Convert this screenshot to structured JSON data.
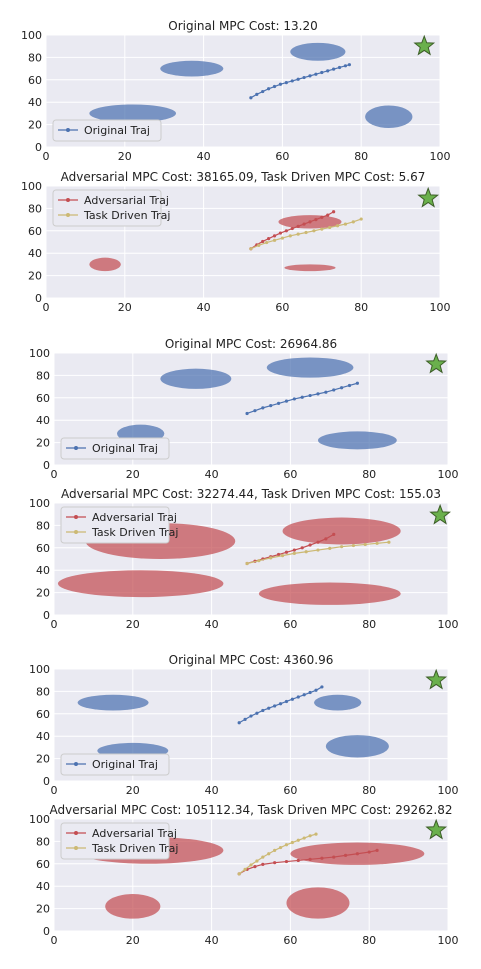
{
  "chart_data": [
    {
      "type": "scatter",
      "title": "Original MPC Cost: 13.20",
      "xlim": [
        0,
        100
      ],
      "ylim": [
        0,
        100
      ],
      "xticks": [
        0,
        20,
        40,
        60,
        80,
        100
      ],
      "yticks": [
        0,
        20,
        40,
        60,
        80,
        100
      ],
      "grid": true,
      "legend_position": "lower-left",
      "obstacle_color": "#4c72b0",
      "obstacles": [
        {
          "cx": 37,
          "cy": 70,
          "rx": 8,
          "ry": 7
        },
        {
          "cx": 69,
          "cy": 85,
          "rx": 7,
          "ry": 8
        },
        {
          "cx": 22,
          "cy": 30,
          "rx": 11,
          "ry": 8
        },
        {
          "cx": 87,
          "cy": 27,
          "rx": 6,
          "ry": 10
        }
      ],
      "goal": {
        "x": 96,
        "y": 90,
        "color": "#6ab04c"
      },
      "series": [
        {
          "name": "Original Traj",
          "color": "#4c72b0",
          "x": [
            52,
            53.5,
            55,
            56.5,
            58,
            59.5,
            61,
            62.5,
            64,
            65.5,
            67,
            68.5,
            70,
            71.5,
            73,
            74.5,
            76,
            77
          ],
          "y": [
            44,
            47,
            49.5,
            52,
            54,
            56,
            57.5,
            59,
            60.5,
            62,
            63.5,
            65,
            66.5,
            68,
            69.5,
            71,
            72.5,
            73.5
          ]
        }
      ]
    },
    {
      "type": "scatter",
      "title": "Adversarial MPC Cost: 38165.09, Task Driven MPC Cost: 5.67",
      "xlim": [
        0,
        100
      ],
      "ylim": [
        0,
        100
      ],
      "xticks": [
        0,
        20,
        40,
        60,
        80,
        100
      ],
      "yticks": [
        0,
        20,
        40,
        60,
        80,
        100
      ],
      "grid": true,
      "legend_position": "upper-left",
      "obstacle_color": "#c44e52",
      "obstacles": [
        {
          "cx": 67,
          "cy": 68,
          "rx": 8,
          "ry": 6
        },
        {
          "cx": 15,
          "cy": 30,
          "rx": 4,
          "ry": 6
        },
        {
          "cx": 67,
          "cy": 27,
          "rx": 6.5,
          "ry": 3
        }
      ],
      "goal": {
        "x": 97,
        "y": 89,
        "color": "#6ab04c"
      },
      "series": [
        {
          "name": "Adversarial Traj",
          "color": "#c44e52",
          "x": [
            52,
            53.5,
            55,
            56.5,
            58,
            59.5,
            61,
            62.5,
            64,
            65.5,
            67,
            68.5,
            70,
            71.5,
            73
          ],
          "y": [
            44,
            47.5,
            50.5,
            53,
            55.5,
            58,
            60,
            62,
            64,
            66,
            68,
            70,
            72,
            74,
            77
          ]
        },
        {
          "name": "Task Driven Traj",
          "color": "#ccb974",
          "x": [
            52,
            54,
            56,
            58,
            60,
            62,
            64,
            66,
            68,
            70,
            72,
            74,
            76,
            78,
            80
          ],
          "y": [
            44,
            47,
            49.5,
            51.5,
            53.5,
            55.5,
            57,
            58.5,
            60,
            61.5,
            63,
            64.5,
            66,
            68,
            70.5
          ]
        }
      ]
    },
    {
      "type": "scatter",
      "title": "Original MPC Cost: 26964.86",
      "xlim": [
        0,
        100
      ],
      "ylim": [
        0,
        100
      ],
      "xticks": [
        0,
        20,
        40,
        60,
        80,
        100
      ],
      "yticks": [
        0,
        20,
        40,
        60,
        80,
        100
      ],
      "grid": true,
      "legend_position": "lower-left",
      "obstacle_color": "#4c72b0",
      "obstacles": [
        {
          "cx": 36,
          "cy": 77,
          "rx": 9,
          "ry": 9
        },
        {
          "cx": 65,
          "cy": 87,
          "rx": 11,
          "ry": 9
        },
        {
          "cx": 22,
          "cy": 28,
          "rx": 6,
          "ry": 8
        },
        {
          "cx": 77,
          "cy": 22,
          "rx": 10,
          "ry": 8
        }
      ],
      "goal": {
        "x": 97,
        "y": 90,
        "color": "#6ab04c"
      },
      "series": [
        {
          "name": "Original Traj",
          "color": "#4c72b0",
          "x": [
            49,
            51,
            53,
            55,
            57,
            59,
            61,
            63,
            65,
            67,
            69,
            71,
            73,
            75,
            77
          ],
          "y": [
            46,
            48.5,
            51,
            53,
            55,
            57,
            59,
            60.5,
            62,
            63.5,
            65,
            67,
            69,
            71,
            73
          ]
        }
      ]
    },
    {
      "type": "scatter",
      "title": "Adversarial MPC Cost: 32274.44, Task Driven MPC Cost: 155.03",
      "xlim": [
        0,
        100
      ],
      "ylim": [
        0,
        100
      ],
      "xticks": [
        0,
        20,
        40,
        60,
        80,
        100
      ],
      "yticks": [
        0,
        20,
        40,
        60,
        80,
        100
      ],
      "grid": true,
      "legend_position": "upper-left",
      "obstacle_color": "#c44e52",
      "obstacles": [
        {
          "cx": 27,
          "cy": 66,
          "rx": 19,
          "ry": 16
        },
        {
          "cx": 73,
          "cy": 75,
          "rx": 15,
          "ry": 12
        },
        {
          "cx": 22,
          "cy": 28,
          "rx": 21,
          "ry": 12
        },
        {
          "cx": 70,
          "cy": 19,
          "rx": 18,
          "ry": 10
        }
      ],
      "goal": {
        "x": 98,
        "y": 89,
        "color": "#6ab04c"
      },
      "series": [
        {
          "name": "Adversarial Traj",
          "color": "#c44e52",
          "x": [
            49,
            51,
            53,
            55,
            57,
            59,
            61,
            63,
            65,
            67,
            69,
            71
          ],
          "y": [
            46,
            48,
            50,
            52,
            54,
            56,
            58,
            60,
            62.5,
            65,
            68,
            72
          ]
        },
        {
          "name": "Task Driven Traj",
          "color": "#ccb974",
          "x": [
            49,
            52,
            55,
            58,
            61,
            64,
            67,
            70,
            73,
            76,
            79,
            82,
            85
          ],
          "y": [
            46,
            48.5,
            51,
            53,
            55,
            56.5,
            58,
            59.5,
            61,
            62,
            63,
            64,
            65
          ]
        }
      ]
    },
    {
      "type": "scatter",
      "title": "Original MPC Cost: 4360.96",
      "xlim": [
        0,
        100
      ],
      "ylim": [
        0,
        100
      ],
      "xticks": [
        0,
        20,
        40,
        60,
        80,
        100
      ],
      "yticks": [
        0,
        20,
        40,
        60,
        80,
        100
      ],
      "grid": true,
      "legend_position": "lower-left",
      "obstacle_color": "#4c72b0",
      "obstacles": [
        {
          "cx": 15,
          "cy": 70,
          "rx": 9,
          "ry": 7
        },
        {
          "cx": 72,
          "cy": 70,
          "rx": 6,
          "ry": 7
        },
        {
          "cx": 20,
          "cy": 27,
          "rx": 9,
          "ry": 7
        },
        {
          "cx": 77,
          "cy": 31,
          "rx": 8,
          "ry": 10
        }
      ],
      "goal": {
        "x": 97,
        "y": 90,
        "color": "#6ab04c"
      },
      "series": [
        {
          "name": "Original Traj",
          "color": "#4c72b0",
          "x": [
            47,
            48.5,
            50,
            51.5,
            53,
            54.5,
            56,
            57.5,
            59,
            60.5,
            62,
            63.5,
            65,
            66.5,
            68
          ],
          "y": [
            52,
            55,
            58,
            60.5,
            63,
            65,
            67,
            69,
            71,
            73,
            75,
            77,
            79,
            81,
            84
          ]
        }
      ]
    },
    {
      "type": "scatter",
      "title": "Adversarial MPC Cost: 105112.34, Task Driven MPC Cost: 29262.82",
      "xlim": [
        0,
        100
      ],
      "ylim": [
        0,
        100
      ],
      "xticks": [
        0,
        20,
        40,
        60,
        80,
        100
      ],
      "yticks": [
        0,
        20,
        40,
        60,
        80,
        100
      ],
      "grid": true,
      "legend_position": "upper-left",
      "obstacle_color": "#c44e52",
      "obstacles": [
        {
          "cx": 24,
          "cy": 72,
          "rx": 19,
          "ry": 12
        },
        {
          "cx": 77,
          "cy": 69,
          "rx": 17,
          "ry": 10
        },
        {
          "cx": 20,
          "cy": 22,
          "rx": 7,
          "ry": 11
        },
        {
          "cx": 67,
          "cy": 25,
          "rx": 8,
          "ry": 14
        }
      ],
      "goal": {
        "x": 97,
        "y": 90,
        "color": "#6ab04c"
      },
      "series": [
        {
          "name": "Adversarial Traj",
          "color": "#c44e52",
          "x": [
            47,
            49,
            51,
            53,
            56,
            59,
            62,
            65,
            68,
            71,
            74,
            77,
            80,
            82
          ],
          "y": [
            51,
            55,
            57.5,
            59.5,
            61,
            62,
            63,
            64,
            65,
            66,
            67.5,
            69,
            70.5,
            72
          ]
        },
        {
          "name": "Task Driven Traj",
          "color": "#ccb974",
          "x": [
            47,
            48.5,
            50,
            51.5,
            53,
            54.5,
            56,
            57.5,
            59,
            60.5,
            62,
            63.5,
            65,
            66.5
          ],
          "y": [
            51,
            55,
            59,
            62.5,
            66,
            69,
            72,
            74.5,
            77,
            79,
            81,
            83,
            85,
            86.5
          ]
        }
      ]
    }
  ]
}
